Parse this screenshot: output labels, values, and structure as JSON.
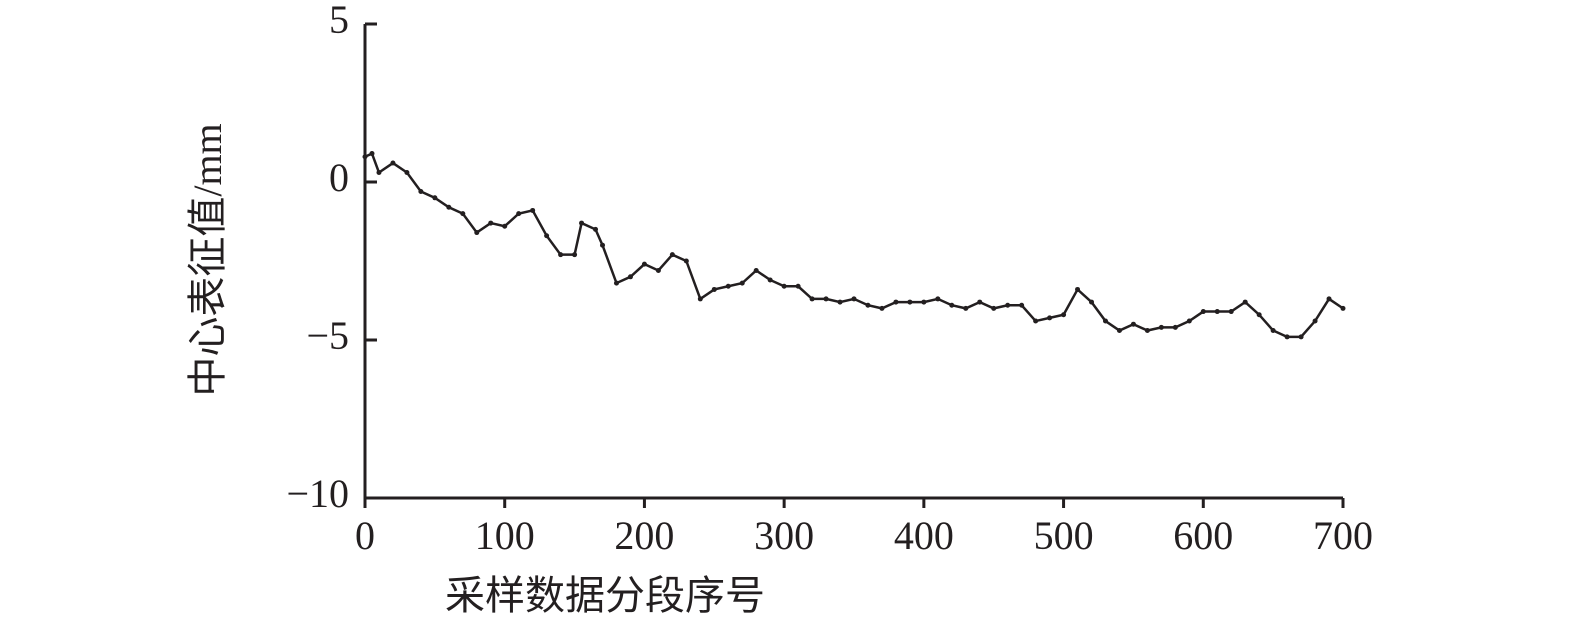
{
  "chart_data": {
    "type": "line",
    "x_label": "采样数据分段序号",
    "y_label": "中心表征值/mm",
    "x": [
      0,
      5,
      10,
      20,
      30,
      40,
      50,
      60,
      70,
      80,
      90,
      100,
      110,
      120,
      130,
      140,
      150,
      155,
      165,
      170,
      180,
      190,
      200,
      210,
      220,
      230,
      240,
      250,
      260,
      270,
      280,
      290,
      300,
      310,
      320,
      330,
      340,
      350,
      360,
      370,
      380,
      390,
      400,
      410,
      420,
      430,
      440,
      450,
      460,
      470,
      480,
      490,
      500,
      510,
      520,
      530,
      540,
      550,
      560,
      570,
      580,
      590,
      600,
      610,
      620,
      630,
      640,
      650,
      660,
      670,
      680,
      690,
      700
    ],
    "series": [
      {
        "color": "#231f20",
        "values": [
          0.8,
          0.9,
          0.3,
          0.6,
          0.3,
          -0.3,
          -0.5,
          -0.8,
          -1.0,
          -1.6,
          -1.3,
          -1.4,
          -1.0,
          -0.9,
          -1.7,
          -2.3,
          -2.3,
          -1.3,
          -1.5,
          -2.0,
          -3.2,
          -3.0,
          -2.6,
          -2.8,
          -2.3,
          -2.5,
          -3.7,
          -3.4,
          -3.3,
          -3.2,
          -2.8,
          -3.1,
          -3.3,
          -3.3,
          -3.7,
          -3.7,
          -3.8,
          -3.7,
          -3.9,
          -4.0,
          -3.8,
          -3.8,
          -3.8,
          -3.7,
          -3.9,
          -4.0,
          -3.8,
          -4.0,
          -3.9,
          -3.9,
          -4.4,
          -4.3,
          -4.2,
          -3.4,
          -3.8,
          -4.4,
          -4.7,
          -4.5,
          -4.7,
          -4.6,
          -4.6,
          -4.4,
          -4.1,
          -4.1,
          -4.1,
          -3.8,
          -4.2,
          -4.7,
          -4.9,
          -4.9,
          -4.4,
          -3.7,
          -4.0
        ]
      }
    ],
    "xlim": [
      0,
      700
    ],
    "xticks": [
      0,
      100,
      200,
      300,
      400,
      500,
      600,
      700
    ],
    "ylim": [
      -10,
      5
    ],
    "yticks": [
      {
        "value": -10,
        "label": "−10"
      },
      {
        "value": -5,
        "label": "−5"
      },
      0,
      5
    ]
  }
}
